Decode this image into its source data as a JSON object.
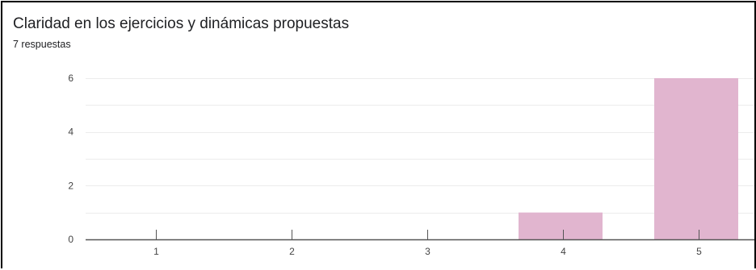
{
  "chart_data": {
    "type": "bar",
    "title": "Claridad en los ejercicios y dinámicas propuestas",
    "subtitle": "7 respuestas",
    "categories": [
      "1",
      "2",
      "3",
      "4",
      "5"
    ],
    "values": [
      0,
      0,
      0,
      1,
      6
    ],
    "ylim": [
      0,
      6
    ],
    "yticks": [
      0,
      2,
      4,
      6
    ],
    "grid": true,
    "legend": "none",
    "bar_color": "#e1b5cf",
    "gridline_color": "#ececec",
    "axis_color": "#555555"
  }
}
